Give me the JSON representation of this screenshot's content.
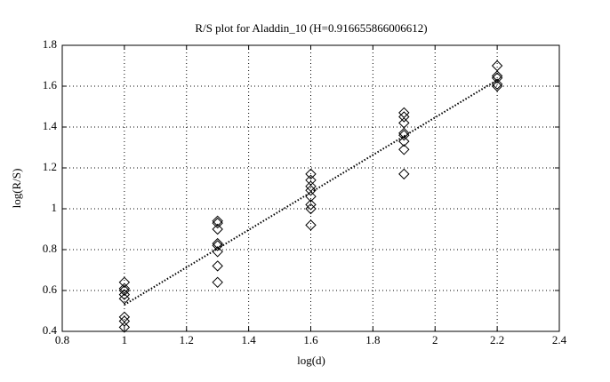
{
  "chart_data": {
    "type": "scatter",
    "title": "R/S plot for Aladdin_10 (H=0.916655866006612)",
    "x_label": "log(d)",
    "y_label": "log(R/S)",
    "xlim": [
      0.8,
      2.4
    ],
    "xticks": [
      0.8,
      1,
      1.2,
      1.4,
      1.6,
      1.8,
      2,
      2.2,
      2.4
    ],
    "ylim": [
      0.4,
      1.8
    ],
    "yticks": [
      0.4,
      0.6,
      0.8,
      1,
      1.2,
      1.4,
      1.6,
      1.8
    ],
    "grid": true,
    "series": [
      {
        "type": "scatter",
        "marker": "diamond",
        "color": "#000000",
        "x": [
          1,
          1,
          1,
          1,
          1,
          1,
          1,
          1,
          1.3,
          1.3,
          1.3,
          1.3,
          1.3,
          1.3,
          1.3,
          1.3,
          1.6,
          1.6,
          1.6,
          1.6,
          1.6,
          1.6,
          1.6,
          1.6,
          1.9,
          1.9,
          1.9,
          1.9,
          1.9,
          1.9,
          1.9,
          1.9,
          2.2,
          2.2,
          2.2,
          2.2,
          2.2
        ],
        "values": [
          0.64,
          0.61,
          0.6,
          0.58,
          0.56,
          0.47,
          0.45,
          0.42,
          0.94,
          0.93,
          0.9,
          0.83,
          0.82,
          0.79,
          0.72,
          0.64,
          1.17,
          1.14,
          1.11,
          1.09,
          1.06,
          1.02,
          1.0,
          0.92,
          1.47,
          1.45,
          1.42,
          1.37,
          1.36,
          1.33,
          1.29,
          1.17,
          1.7,
          1.65,
          1.64,
          1.61,
          1.6
        ]
      },
      {
        "type": "line",
        "style": "dotted",
        "color": "#000000",
        "x": [
          1,
          2.2
        ],
        "values": [
          0.53,
          1.63
        ]
      }
    ]
  }
}
